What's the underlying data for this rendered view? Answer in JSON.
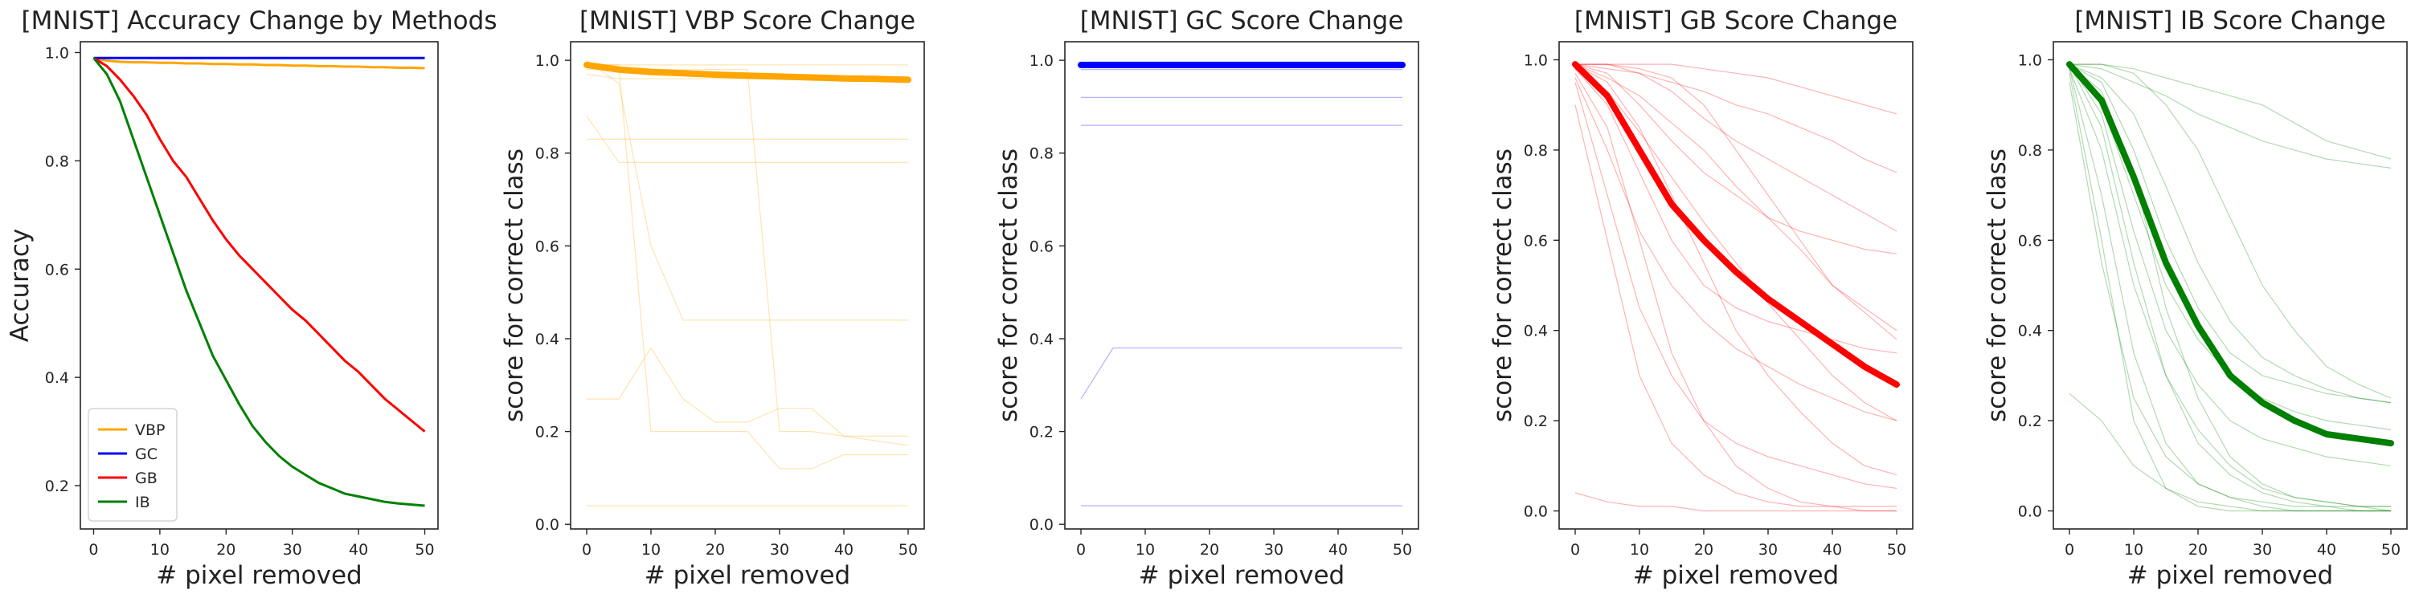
{
  "figure": {
    "colors": {
      "VBP": "#ffa500",
      "GC": "#0000ff",
      "GB": "#ff0000",
      "IB": "#008000"
    }
  },
  "chart_data": [
    {
      "type": "line",
      "title": "[MNIST] Accuracy Change by Methods",
      "xlabel": "# pixel removed",
      "ylabel": "Accuracy",
      "xlim": [
        -2,
        52
      ],
      "ylim": [
        0.12,
        1.02
      ],
      "xticks": [
        "0",
        "10",
        "20",
        "30",
        "40",
        "50"
      ],
      "yticks": [
        "0.2",
        "0.4",
        "0.6",
        "0.8",
        "1.0"
      ],
      "grid": false,
      "legend_position": "bottom-left",
      "x": [
        0,
        2,
        4,
        6,
        8,
        10,
        12,
        14,
        16,
        18,
        20,
        22,
        24,
        26,
        28,
        30,
        32,
        34,
        36,
        38,
        40,
        42,
        44,
        46,
        48,
        50
      ],
      "series": [
        {
          "name": "VBP",
          "color": "#ffa500",
          "values": [
            0.99,
            0.985,
            0.983,
            0.982,
            0.982,
            0.981,
            0.981,
            0.98,
            0.98,
            0.979,
            0.979,
            0.978,
            0.978,
            0.977,
            0.977,
            0.976,
            0.976,
            0.975,
            0.975,
            0.974,
            0.974,
            0.973,
            0.973,
            0.972,
            0.972,
            0.971
          ]
        },
        {
          "name": "GC",
          "color": "#0000ff",
          "values": [
            0.99,
            0.99,
            0.99,
            0.99,
            0.99,
            0.99,
            0.99,
            0.99,
            0.99,
            0.99,
            0.99,
            0.99,
            0.99,
            0.99,
            0.99,
            0.99,
            0.99,
            0.99,
            0.99,
            0.99,
            0.99,
            0.99,
            0.99,
            0.99,
            0.99,
            0.99
          ]
        },
        {
          "name": "GB",
          "color": "#ff0000",
          "values": [
            0.99,
            0.975,
            0.95,
            0.92,
            0.885,
            0.84,
            0.8,
            0.77,
            0.73,
            0.69,
            0.655,
            0.625,
            0.6,
            0.575,
            0.55,
            0.525,
            0.505,
            0.48,
            0.455,
            0.43,
            0.41,
            0.385,
            0.36,
            0.34,
            0.32,
            0.3
          ]
        },
        {
          "name": "IB",
          "color": "#008000",
          "values": [
            0.99,
            0.96,
            0.91,
            0.84,
            0.77,
            0.7,
            0.63,
            0.56,
            0.5,
            0.44,
            0.395,
            0.35,
            0.31,
            0.28,
            0.255,
            0.235,
            0.22,
            0.205,
            0.195,
            0.185,
            0.18,
            0.175,
            0.17,
            0.167,
            0.165,
            0.163
          ]
        }
      ]
    },
    {
      "type": "line",
      "title": "[MNIST] VBP Score Change",
      "xlabel": "# pixel removed",
      "ylabel": "score for correct class",
      "xlim": [
        -2.5,
        52.5
      ],
      "ylim": [
        -0.01,
        1.04
      ],
      "xticks": [
        "0",
        "10",
        "20",
        "30",
        "40",
        "50"
      ],
      "yticks": [
        "0.0",
        "0.2",
        "0.4",
        "0.6",
        "0.8",
        "1.0"
      ],
      "grid": false,
      "color": "#ffa500",
      "x": [
        0,
        5,
        10,
        15,
        20,
        25,
        30,
        35,
        40,
        45,
        50
      ],
      "mean": [
        0.99,
        0.98,
        0.975,
        0.972,
        0.969,
        0.967,
        0.965,
        0.963,
        0.961,
        0.96,
        0.958
      ],
      "samples": [
        [
          0.27,
          0.27,
          0.38,
          0.27,
          0.22,
          0.22,
          0.25,
          0.25,
          0.19,
          0.18,
          0.17
        ],
        [
          0.04,
          0.04,
          0.04,
          0.04,
          0.04,
          0.04,
          0.04,
          0.04,
          0.04,
          0.04,
          0.04
        ],
        [
          0.83,
          0.83,
          0.83,
          0.83,
          0.83,
          0.83,
          0.83,
          0.83,
          0.83,
          0.83,
          0.83
        ],
        [
          0.88,
          0.78,
          0.78,
          0.78,
          0.78,
          0.78,
          0.78,
          0.78,
          0.78,
          0.78,
          0.78
        ],
        [
          1.0,
          0.95,
          0.6,
          0.44,
          0.44,
          0.44,
          0.44,
          0.44,
          0.44,
          0.44,
          0.44
        ],
        [
          0.99,
          0.99,
          0.2,
          0.2,
          0.2,
          0.2,
          0.12,
          0.12,
          0.15,
          0.15,
          0.15
        ],
        [
          0.98,
          0.98,
          0.98,
          0.98,
          0.98,
          0.98,
          0.2,
          0.2,
          0.19,
          0.19,
          0.19
        ],
        [
          0.99,
          0.99,
          0.99,
          0.99,
          0.99,
          0.99,
          0.99,
          0.99,
          0.99,
          0.99,
          0.99
        ],
        [
          0.97,
          0.96,
          0.96,
          0.96,
          0.96,
          0.96,
          0.96,
          0.96,
          0.96,
          0.96,
          0.96
        ]
      ]
    },
    {
      "type": "line",
      "title": "[MNIST] GC Score Change",
      "xlabel": "# pixel removed",
      "ylabel": "score for correct class",
      "xlim": [
        -2.5,
        52.5
      ],
      "ylim": [
        -0.01,
        1.04
      ],
      "xticks": [
        "0",
        "10",
        "20",
        "30",
        "40",
        "50"
      ],
      "yticks": [
        "0.0",
        "0.2",
        "0.4",
        "0.6",
        "0.8",
        "1.0"
      ],
      "grid": false,
      "color": "#0000ff",
      "x": [
        0,
        5,
        10,
        15,
        20,
        25,
        30,
        35,
        40,
        45,
        50
      ],
      "mean": [
        0.99,
        0.99,
        0.99,
        0.99,
        0.99,
        0.99,
        0.99,
        0.99,
        0.99,
        0.99,
        0.99
      ],
      "samples": [
        [
          0.27,
          0.38,
          0.38,
          0.38,
          0.38,
          0.38,
          0.38,
          0.38,
          0.38,
          0.38,
          0.38
        ],
        [
          0.04,
          0.04,
          0.04,
          0.04,
          0.04,
          0.04,
          0.04,
          0.04,
          0.04,
          0.04,
          0.04
        ],
        [
          0.86,
          0.86,
          0.86,
          0.86,
          0.86,
          0.86,
          0.86,
          0.86,
          0.86,
          0.86,
          0.86
        ],
        [
          0.92,
          0.92,
          0.92,
          0.92,
          0.92,
          0.92,
          0.92,
          0.92,
          0.92,
          0.92,
          0.92
        ],
        [
          0.98,
          0.98,
          0.98,
          0.98,
          0.98,
          0.98,
          0.98,
          0.98,
          0.98,
          0.98,
          0.98
        ]
      ]
    },
    {
      "type": "line",
      "title": "[MNIST] GB Score Change",
      "xlabel": "# pixel removed",
      "ylabel": "score for correct class",
      "xlim": [
        -2.5,
        52.5
      ],
      "ylim": [
        -0.04,
        1.04
      ],
      "xticks": [
        "0",
        "10",
        "20",
        "30",
        "40",
        "50"
      ],
      "yticks": [
        "0.0",
        "0.2",
        "0.4",
        "0.6",
        "0.8",
        "1.0"
      ],
      "grid": false,
      "color": "#ff0000",
      "x": [
        0,
        5,
        10,
        15,
        20,
        25,
        30,
        35,
        40,
        45,
        50
      ],
      "mean": [
        0.99,
        0.92,
        0.8,
        0.68,
        0.6,
        0.53,
        0.47,
        0.42,
        0.37,
        0.32,
        0.28
      ],
      "samples": [
        [
          0.99,
          0.98,
          0.97,
          0.95,
          0.93,
          0.9,
          0.88,
          0.85,
          0.82,
          0.78,
          0.75
        ],
        [
          0.99,
          0.95,
          0.85,
          0.7,
          0.55,
          0.4,
          0.3,
          0.22,
          0.15,
          0.1,
          0.08
        ],
        [
          0.98,
          0.9,
          0.75,
          0.6,
          0.5,
          0.45,
          0.42,
          0.4,
          0.38,
          0.36,
          0.35
        ],
        [
          0.99,
          0.99,
          0.98,
          0.96,
          0.9,
          0.8,
          0.7,
          0.6,
          0.5,
          0.45,
          0.4
        ],
        [
          0.95,
          0.7,
          0.45,
          0.3,
          0.2,
          0.15,
          0.12,
          0.1,
          0.08,
          0.06,
          0.05
        ],
        [
          0.99,
          0.97,
          0.9,
          0.82,
          0.75,
          0.7,
          0.65,
          0.62,
          0.6,
          0.58,
          0.57
        ],
        [
          0.97,
          0.85,
          0.6,
          0.35,
          0.2,
          0.1,
          0.05,
          0.02,
          0.01,
          0.01,
          0.01
        ],
        [
          0.99,
          0.99,
          0.99,
          0.99,
          0.98,
          0.97,
          0.96,
          0.94,
          0.92,
          0.9,
          0.88
        ],
        [
          0.9,
          0.6,
          0.3,
          0.15,
          0.08,
          0.04,
          0.02,
          0.01,
          0.01,
          0.0,
          0.0
        ],
        [
          0.99,
          0.96,
          0.92,
          0.86,
          0.8,
          0.72,
          0.65,
          0.58,
          0.5,
          0.44,
          0.38
        ],
        [
          0.98,
          0.93,
          0.84,
          0.74,
          0.64,
          0.55,
          0.46,
          0.38,
          0.3,
          0.24,
          0.2
        ],
        [
          0.04,
          0.02,
          0.01,
          0.01,
          0.0,
          0.0,
          0.0,
          0.0,
          0.0,
          0.0,
          0.0
        ],
        [
          0.99,
          0.99,
          0.97,
          0.93,
          0.87,
          0.82,
          0.78,
          0.74,
          0.7,
          0.66,
          0.62
        ],
        [
          0.96,
          0.8,
          0.62,
          0.5,
          0.42,
          0.36,
          0.32,
          0.28,
          0.25,
          0.22,
          0.2
        ]
      ]
    },
    {
      "type": "line",
      "title": "[MNIST] IB Score Change",
      "xlabel": "# pixel removed",
      "ylabel": "score for correct class",
      "xlim": [
        -2.5,
        52.5
      ],
      "ylim": [
        -0.04,
        1.04
      ],
      "xticks": [
        "0",
        "10",
        "20",
        "30",
        "40",
        "50"
      ],
      "yticks": [
        "0.0",
        "0.2",
        "0.4",
        "0.6",
        "0.8",
        "1.0"
      ],
      "grid": false,
      "color": "#008000",
      "x": [
        0,
        5,
        10,
        15,
        20,
        25,
        30,
        35,
        40,
        45,
        50
      ],
      "mean": [
        0.99,
        0.91,
        0.74,
        0.55,
        0.41,
        0.3,
        0.24,
        0.2,
        0.17,
        0.16,
        0.15
      ],
      "samples": [
        [
          0.99,
          0.85,
          0.55,
          0.3,
          0.15,
          0.08,
          0.04,
          0.02,
          0.01,
          0.01,
          0.0
        ],
        [
          0.99,
          0.95,
          0.8,
          0.6,
          0.45,
          0.35,
          0.3,
          0.28,
          0.26,
          0.25,
          0.24
        ],
        [
          0.99,
          0.99,
          0.97,
          0.9,
          0.8,
          0.65,
          0.5,
          0.4,
          0.32,
          0.28,
          0.25
        ],
        [
          0.98,
          0.7,
          0.35,
          0.15,
          0.06,
          0.03,
          0.01,
          0.0,
          0.0,
          0.0,
          0.0
        ],
        [
          0.99,
          0.9,
          0.7,
          0.5,
          0.38,
          0.3,
          0.25,
          0.22,
          0.2,
          0.19,
          0.18
        ],
        [
          0.97,
          0.6,
          0.2,
          0.05,
          0.01,
          0.0,
          0.0,
          0.0,
          0.0,
          0.0,
          0.0
        ],
        [
          0.99,
          0.98,
          0.95,
          0.92,
          0.88,
          0.85,
          0.82,
          0.8,
          0.78,
          0.77,
          0.76
        ],
        [
          0.99,
          0.93,
          0.75,
          0.45,
          0.25,
          0.12,
          0.06,
          0.03,
          0.02,
          0.01,
          0.01
        ],
        [
          0.95,
          0.55,
          0.25,
          0.12,
          0.06,
          0.03,
          0.02,
          0.01,
          0.01,
          0.0,
          0.0
        ],
        [
          0.99,
          0.99,
          0.98,
          0.96,
          0.94,
          0.92,
          0.9,
          0.86,
          0.82,
          0.8,
          0.78
        ],
        [
          0.99,
          0.88,
          0.62,
          0.4,
          0.28,
          0.2,
          0.16,
          0.14,
          0.12,
          0.11,
          0.1
        ],
        [
          0.98,
          0.8,
          0.5,
          0.3,
          0.18,
          0.1,
          0.05,
          0.03,
          0.02,
          0.01,
          0.01
        ],
        [
          0.26,
          0.2,
          0.1,
          0.05,
          0.02,
          0.01,
          0.0,
          0.0,
          0.0,
          0.0,
          0.0
        ],
        [
          0.99,
          0.96,
          0.88,
          0.72,
          0.55,
          0.42,
          0.34,
          0.3,
          0.27,
          0.25,
          0.24
        ]
      ]
    }
  ]
}
